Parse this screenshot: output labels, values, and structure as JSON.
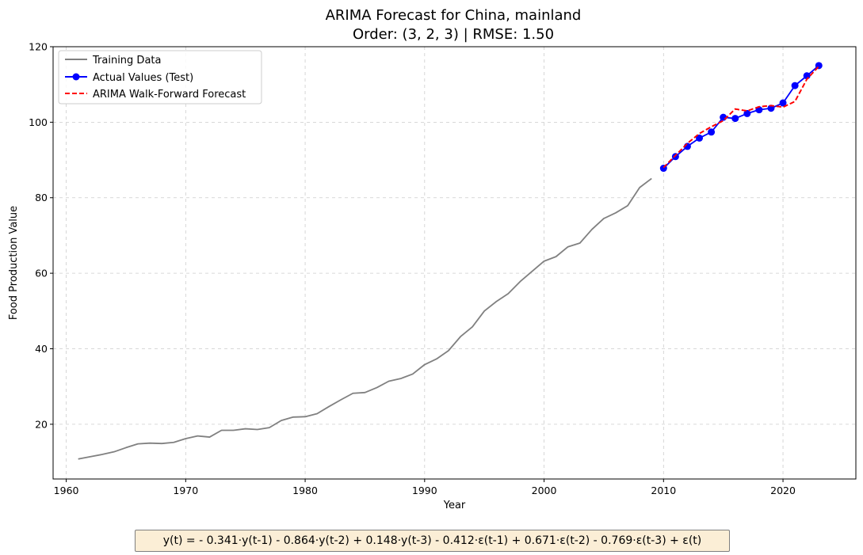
{
  "chart_data": {
    "type": "line",
    "title": "ARIMA Forecast for China, mainland",
    "subtitle": "Order: (3, 2, 3) | RMSE: 1.50",
    "xlabel": "Year",
    "ylabel": "Food Production Value",
    "xlim": [
      1958.9,
      2026.1
    ],
    "ylim": [
      5.5,
      120
    ],
    "xticks": [
      1960,
      1970,
      1980,
      1990,
      2000,
      2010,
      2020
    ],
    "yticks": [
      20,
      40,
      60,
      80,
      100,
      120
    ],
    "grid": true,
    "legend_position": "top-left",
    "series": [
      {
        "name": "Training Data",
        "color": "#808080",
        "style": "solid",
        "x": [
          1961,
          1962,
          1963,
          1964,
          1965,
          1966,
          1967,
          1968,
          1969,
          1970,
          1971,
          1972,
          1973,
          1974,
          1975,
          1976,
          1977,
          1978,
          1979,
          1980,
          1981,
          1982,
          1983,
          1984,
          1985,
          1986,
          1987,
          1988,
          1989,
          1990,
          1991,
          1992,
          1993,
          1994,
          1995,
          1996,
          1997,
          1998,
          1999,
          2000,
          2001,
          2002,
          2003,
          2004,
          2005,
          2006,
          2007,
          2008,
          2009
        ],
        "y": [
          10.8,
          11.4,
          12.0,
          12.7,
          13.8,
          14.8,
          15.0,
          14.9,
          15.2,
          16.2,
          16.9,
          16.6,
          18.4,
          18.4,
          18.8,
          18.6,
          19.1,
          21.0,
          21.9,
          22.0,
          22.8,
          24.7,
          26.5,
          28.2,
          28.4,
          29.7,
          31.4,
          32.1,
          33.3,
          35.8,
          37.3,
          39.5,
          43.2,
          45.8,
          50.0,
          52.5,
          54.6,
          57.8,
          60.5,
          63.2,
          64.4,
          67.0,
          68.0,
          71.6,
          74.5,
          76.0,
          77.9,
          82.7,
          85.1
        ]
      },
      {
        "name": "Actual Values (Test)",
        "color": "#0000ff",
        "style": "solid-marker",
        "x": [
          2010,
          2011,
          2012,
          2013,
          2014,
          2015,
          2016,
          2017,
          2018,
          2019,
          2020,
          2021,
          2022,
          2023
        ],
        "y": [
          87.8,
          90.9,
          93.6,
          95.8,
          97.4,
          101.3,
          101.0,
          102.3,
          103.3,
          103.7,
          105.1,
          109.7,
          112.3,
          115.0
        ]
      },
      {
        "name": "ARIMA Walk-Forward Forecast",
        "color": "#ff0000",
        "style": "dashed",
        "x": [
          2010,
          2011,
          2012,
          2013,
          2014,
          2015,
          2016,
          2017,
          2018,
          2019,
          2020,
          2021,
          2022,
          2023
        ],
        "y": [
          88.0,
          91.2,
          94.4,
          97.0,
          98.8,
          100.4,
          103.5,
          103.0,
          104.1,
          104.4,
          104.0,
          105.5,
          111.4,
          114.8
        ]
      }
    ]
  },
  "equation": "y(t) = - 0.341·y(t-1) - 0.864·y(t-2) + 0.148·y(t-3) - 0.412·ε(t-1) + 0.671·ε(t-2) - 0.769·ε(t-3) + ε(t)"
}
